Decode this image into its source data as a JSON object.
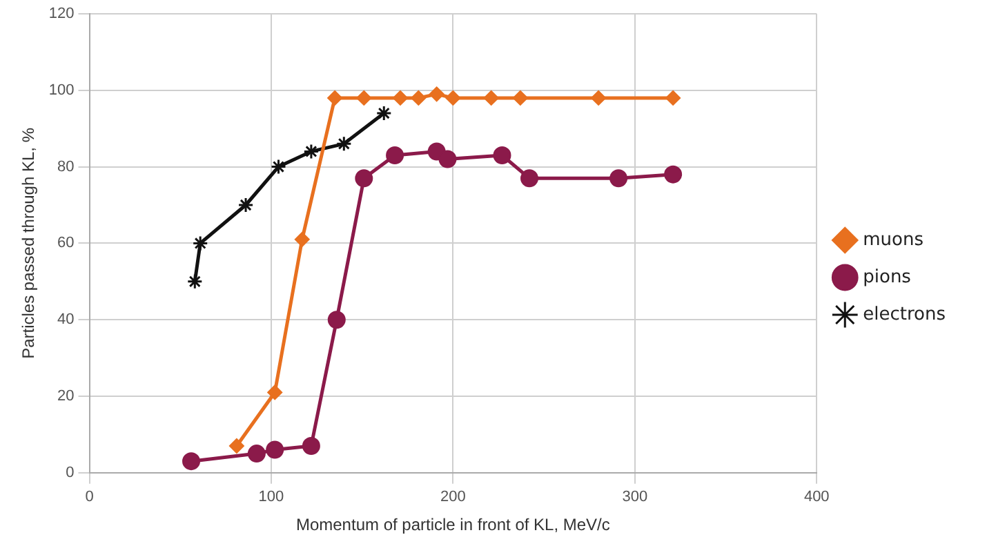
{
  "chart_data": {
    "type": "line",
    "xlabel": "Momentum of particle in front of KL, MeV/c",
    "ylabel": "Particles passed through KL, %",
    "xlim": [
      0,
      400
    ],
    "xticks": [
      0,
      100,
      200,
      300,
      400
    ],
    "ylim": [
      0,
      120
    ],
    "yticks": [
      0,
      20,
      40,
      60,
      80,
      100,
      120
    ],
    "grid": true,
    "legend": "right",
    "line_style": "solid",
    "series": [
      {
        "name": "muons",
        "color": "#e8701f",
        "marker": "diamond",
        "x": [
          81,
          102,
          117,
          135,
          151,
          171,
          181,
          191,
          200,
          221,
          237,
          280,
          321
        ],
        "values": [
          7,
          21,
          61,
          98,
          98,
          98,
          98,
          99,
          98,
          98,
          98,
          98,
          98
        ]
      },
      {
        "name": "pions",
        "color": "#8b1a4a",
        "marker": "circle",
        "x": [
          56,
          92,
          102,
          122,
          136,
          151,
          168,
          191,
          197,
          227,
          242,
          291,
          321
        ],
        "values": [
          3,
          5,
          6,
          7,
          40,
          77,
          83,
          84,
          82,
          83,
          77,
          77,
          78
        ]
      },
      {
        "name": "electrons",
        "color": "#111111",
        "marker": "cross",
        "x": [
          58,
          61,
          86,
          104,
          122,
          140,
          162
        ],
        "values": [
          50,
          60,
          70,
          80,
          84,
          86,
          94
        ]
      }
    ]
  }
}
